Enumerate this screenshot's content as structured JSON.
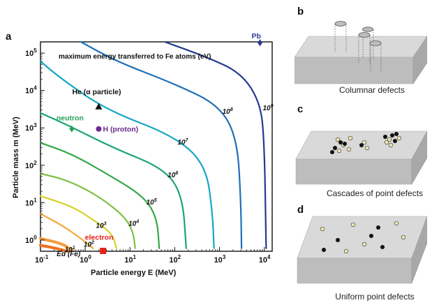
{
  "panels": {
    "a": "a",
    "b": "b",
    "c": "c",
    "d": "d"
  },
  "captions": {
    "b": "Columnar defects",
    "c": "Cascades of point defects",
    "d": "Uniform point defects"
  },
  "chart_data": {
    "type": "line",
    "title": "maximum energy transferred to Fe atoms (eV)",
    "xlabel": "Particle energy E (MeV)",
    "ylabel": "Particle mass m (MeV)",
    "x_scale": "log",
    "y_scale": "log",
    "xlim": [
      0.1,
      15000
    ],
    "ylim": [
      0.5,
      200000
    ],
    "x_ticks": [
      "10^-1",
      "10^0",
      "10^1",
      "10^2",
      "10^3",
      "10^4"
    ],
    "y_ticks": [
      "10^0",
      "10^1",
      "10^2",
      "10^3",
      "10^4",
      "10^5"
    ],
    "contours": [
      {
        "label": "Ed (Fe)",
        "label_text": "Ed (Fe)",
        "color": "#f07020"
      },
      {
        "label": "10^1",
        "color": "#f59a3b"
      },
      {
        "label": "10^2",
        "color": "#f2a93a"
      },
      {
        "label": "10^3",
        "color": "#d6d12a"
      },
      {
        "label": "10^4",
        "color": "#7cc243"
      },
      {
        "label": "10^5",
        "color": "#35a948"
      },
      {
        "label": "10^6",
        "color": "#1aa574"
      },
      {
        "label": "10^7",
        "color": "#14a7c4"
      },
      {
        "label": "10^8",
        "color": "#1f6fb8"
      },
      {
        "label": "10^9",
        "color": "#233a8f"
      }
    ],
    "particles": [
      {
        "name": "He (α particle)",
        "E": 2,
        "m": 3700,
        "color": "#111111",
        "marker": "triangle"
      },
      {
        "name": "neutron",
        "E": 0.5,
        "m": 940,
        "color": "#25a05a",
        "marker": "diamond"
      },
      {
        "name": "H (proton)",
        "E": 2,
        "m": 938,
        "color": "#6b2a8c",
        "marker": "circle"
      },
      {
        "name": "electron",
        "E": 2.5,
        "m": 0.511,
        "color": "#e2231a",
        "marker": "square"
      },
      {
        "name": "Pb",
        "E": 8000,
        "m": 190000,
        "color": "#2a3a9a",
        "marker": "diamond"
      }
    ]
  }
}
